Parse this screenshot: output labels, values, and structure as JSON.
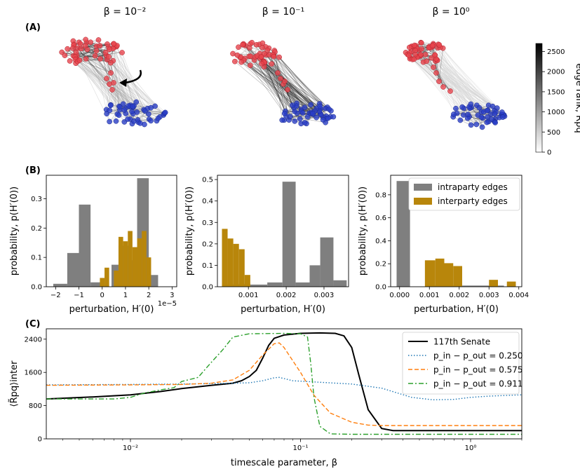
{
  "panels": {
    "A": "(A)",
    "B": "(B)",
    "C": "(C)"
  },
  "column_titles": [
    "β = 10⁻²",
    "β = 10⁻¹",
    "β = 10⁰"
  ],
  "colorbar": {
    "label": "edge rank, R̃pq",
    "ticks": [
      0,
      500,
      1000,
      1500,
      2000,
      2500
    ],
    "range": [
      0,
      2700
    ]
  },
  "colors": {
    "red_party": "#e8454e",
    "blue_party": "#2b3fc7",
    "intraparty": "#7f7f7f",
    "interparty": "#b8860b",
    "senate": "#000000",
    "p1": "#1f77b4",
    "p2": "#ff7f0e",
    "p3": "#2ca02c"
  },
  "chart_data": [
    {
      "type": "bar",
      "panel": "B1",
      "xlabel": "perturbation, H′(0)",
      "ylabel": "probability, p(H′(0))",
      "x_multiplier": "1e−5",
      "xlim": [
        -2.4,
        3.2
      ],
      "ylim": [
        0,
        0.38
      ],
      "xticks": [
        -2,
        -1,
        0,
        1,
        2,
        3
      ],
      "yticks": [
        0.0,
        0.1,
        0.2,
        0.3
      ],
      "series": [
        {
          "name": "intraparty edges",
          "bins": [
            [
              -2.1,
              -1.5,
              0.01
            ],
            [
              -1.5,
              -1.0,
              0.115
            ],
            [
              -1.0,
              -0.5,
              0.28
            ],
            [
              -0.5,
              0.0,
              0.015
            ],
            [
              0.0,
              0.4,
              0.0
            ],
            [
              0.4,
              0.7,
              0.075
            ],
            [
              0.7,
              1.2,
              0.14
            ],
            [
              1.2,
              1.5,
              0.09
            ],
            [
              1.5,
              2.0,
              0.37
            ],
            [
              2.0,
              2.4,
              0.04
            ]
          ]
        },
        {
          "name": "interparty edges",
          "bins": [
            [
              -0.1,
              0.1,
              0.03
            ],
            [
              0.1,
              0.3,
              0.065
            ],
            [
              0.5,
              0.7,
              0.055
            ],
            [
              0.7,
              0.9,
              0.17
            ],
            [
              0.9,
              1.1,
              0.155
            ],
            [
              1.1,
              1.3,
              0.19
            ],
            [
              1.3,
              1.5,
              0.135
            ],
            [
              1.5,
              1.7,
              0.165
            ],
            [
              1.7,
              1.9,
              0.19
            ],
            [
              1.9,
              2.1,
              0.1
            ]
          ]
        }
      ]
    },
    {
      "type": "bar",
      "panel": "B2",
      "xlabel": "perturbation, H′(0)",
      "ylabel": "probability, p(H′(0))",
      "xlim": [
        0.00018,
        0.00365
      ],
      "ylim": [
        0,
        0.52
      ],
      "xticks": [
        0.001,
        0.002,
        0.003
      ],
      "yticks": [
        0.0,
        0.1,
        0.2,
        0.3,
        0.4,
        0.5
      ],
      "series": [
        {
          "name": "intraparty edges",
          "bins": [
            [
              0.0003,
              0.00063,
              0.01
            ],
            [
              0.00063,
              0.00105,
              0.012
            ],
            [
              0.00105,
              0.0015,
              0.01
            ],
            [
              0.0015,
              0.0019,
              0.02
            ],
            [
              0.0019,
              0.00225,
              0.49
            ],
            [
              0.00225,
              0.00262,
              0.02
            ],
            [
              0.00262,
              0.0029,
              0.1
            ],
            [
              0.0029,
              0.00325,
              0.23
            ],
            [
              0.00325,
              0.0036,
              0.03
            ]
          ]
        },
        {
          "name": "interparty edges",
          "bins": [
            [
              0.0003,
              0.00045,
              0.27
            ],
            [
              0.00045,
              0.0006,
              0.225
            ],
            [
              0.0006,
              0.00075,
              0.2
            ],
            [
              0.00075,
              0.0009,
              0.175
            ],
            [
              0.0009,
              0.00105,
              0.055
            ]
          ]
        }
      ]
    },
    {
      "type": "bar",
      "panel": "B3",
      "xlabel": "perturbation, H′(0)",
      "ylabel": "probability, p(H′(0))",
      "xlim": [
        -0.0003,
        0.0041
      ],
      "ylim": [
        0,
        0.97
      ],
      "xticks": [
        0.0,
        0.001,
        0.002,
        0.003,
        0.004
      ],
      "yticks": [
        0.0,
        0.2,
        0.4,
        0.6,
        0.8
      ],
      "series": [
        {
          "name": "intraparty edges",
          "bins": [
            [
              -0.0001,
              0.00035,
              0.92
            ],
            [
              0.0009,
              0.0035,
              0.01
            ]
          ]
        },
        {
          "name": "interparty edges",
          "bins": [
            [
              0.00085,
              0.0012,
              0.23
            ],
            [
              0.0012,
              0.0015,
              0.245
            ],
            [
              0.0015,
              0.0018,
              0.205
            ],
            [
              0.0018,
              0.0021,
              0.18
            ],
            [
              0.003,
              0.0033,
              0.06
            ],
            [
              0.0036,
              0.0039,
              0.045
            ]
          ]
        }
      ],
      "legend": "top-right"
    },
    {
      "type": "line",
      "panel": "C",
      "xlabel": "timescale parameter, β",
      "ylabel": "⟨R̃pq⟩inter",
      "xscale": "log",
      "xlim": [
        0.0032,
        2.0
      ],
      "ylim": [
        0,
        2650
      ],
      "xticks": [
        0.01,
        0.1,
        1
      ],
      "yticks": [
        0,
        800,
        1600,
        2400
      ],
      "legend": "top-right",
      "series": [
        {
          "name": "117th Senate",
          "style": "solid",
          "points": [
            [
              0.0032,
              960
            ],
            [
              0.006,
              1010
            ],
            [
              0.01,
              1060
            ],
            [
              0.015,
              1140
            ],
            [
              0.02,
              1210
            ],
            [
              0.03,
              1290
            ],
            [
              0.04,
              1340
            ],
            [
              0.045,
              1400
            ],
            [
              0.05,
              1500
            ],
            [
              0.055,
              1650
            ],
            [
              0.06,
              1950
            ],
            [
              0.065,
              2250
            ],
            [
              0.07,
              2420
            ],
            [
              0.08,
              2500
            ],
            [
              0.1,
              2540
            ],
            [
              0.13,
              2550
            ],
            [
              0.16,
              2540
            ],
            [
              0.18,
              2480
            ],
            [
              0.2,
              2200
            ],
            [
              0.22,
              1550
            ],
            [
              0.25,
              700
            ],
            [
              0.3,
              250
            ],
            [
              0.35,
              200
            ],
            [
              0.5,
              200
            ],
            [
              2.0,
              200
            ]
          ]
        },
        {
          "name": "p_in − p_out = 0.250",
          "style": "dotted",
          "points": [
            [
              0.0032,
              1300
            ],
            [
              0.01,
              1310
            ],
            [
              0.02,
              1320
            ],
            [
              0.03,
              1330
            ],
            [
              0.04,
              1340
            ],
            [
              0.05,
              1350
            ],
            [
              0.06,
              1400
            ],
            [
              0.07,
              1470
            ],
            [
              0.075,
              1480
            ],
            [
              0.09,
              1400
            ],
            [
              0.12,
              1370
            ],
            [
              0.2,
              1320
            ],
            [
              0.3,
              1220
            ],
            [
              0.45,
              1000
            ],
            [
              0.6,
              940
            ],
            [
              0.8,
              950
            ],
            [
              1.0,
              1000
            ],
            [
              1.3,
              1030
            ],
            [
              2.0,
              1060
            ]
          ]
        },
        {
          "name": "p_in − p_out = 0.575",
          "style": "dashed",
          "points": [
            [
              0.0032,
              1290
            ],
            [
              0.01,
              1300
            ],
            [
              0.02,
              1310
            ],
            [
              0.03,
              1340
            ],
            [
              0.04,
              1420
            ],
            [
              0.05,
              1650
            ],
            [
              0.06,
              2020
            ],
            [
              0.07,
              2290
            ],
            [
              0.075,
              2310
            ],
            [
              0.08,
              2200
            ],
            [
              0.1,
              1600
            ],
            [
              0.12,
              1050
            ],
            [
              0.15,
              620
            ],
            [
              0.2,
              400
            ],
            [
              0.25,
              330
            ],
            [
              0.3,
              320
            ],
            [
              2.0,
              320
            ]
          ]
        },
        {
          "name": "p_in − p_out = 0.911",
          "style": "dashdot",
          "points": [
            [
              0.0032,
              960
            ],
            [
              0.006,
              960
            ],
            [
              0.008,
              960
            ],
            [
              0.01,
              1000
            ],
            [
              0.012,
              1100
            ],
            [
              0.015,
              1180
            ],
            [
              0.018,
              1230
            ],
            [
              0.02,
              1380
            ],
            [
              0.025,
              1480
            ],
            [
              0.03,
              1850
            ],
            [
              0.035,
              2150
            ],
            [
              0.04,
              2450
            ],
            [
              0.05,
              2530
            ],
            [
              0.08,
              2540
            ],
            [
              0.1,
              2530
            ],
            [
              0.11,
              2450
            ],
            [
              0.115,
              1800
            ],
            [
              0.12,
              1000
            ],
            [
              0.13,
              300
            ],
            [
              0.15,
              120
            ],
            [
              0.2,
              110
            ],
            [
              2.0,
              110
            ]
          ]
        }
      ]
    }
  ]
}
